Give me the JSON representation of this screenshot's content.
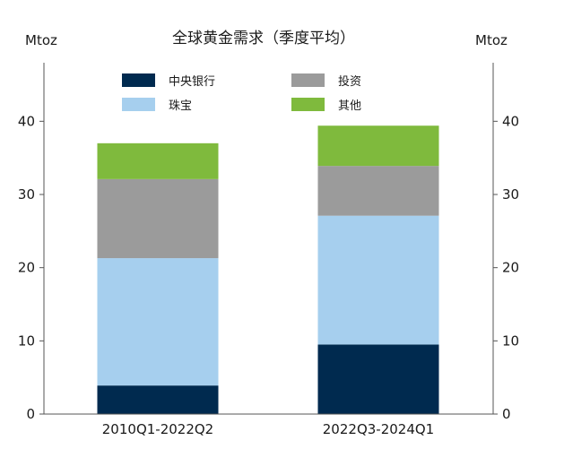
{
  "chart_data": {
    "type": "bar",
    "stacked": true,
    "title": "全球黄金需求（季度平均）",
    "y_unit_left": "Mtoz",
    "y_unit_right": "Mtoz",
    "categories": [
      "2010Q1-2022Q2",
      "2022Q3-2024Q1"
    ],
    "series": [
      {
        "name": "中央银行",
        "color": "#002a4f",
        "values": [
          3.9,
          9.5
        ]
      },
      {
        "name": "珠宝",
        "color": "#a6cfee",
        "values": [
          17.4,
          17.6
        ]
      },
      {
        "name": "投资",
        "color": "#9b9b9b",
        "values": [
          10.8,
          6.8
        ]
      },
      {
        "name": "其他",
        "color": "#7fba3d",
        "values": [
          4.9,
          5.5
        ]
      }
    ],
    "legend_order": [
      "中央银行",
      "投资",
      "珠宝",
      "其他"
    ],
    "legend_placement": "top",
    "ylim": [
      0,
      48
    ],
    "yticks": [
      0,
      10,
      20,
      30,
      40
    ],
    "grid": false
  }
}
